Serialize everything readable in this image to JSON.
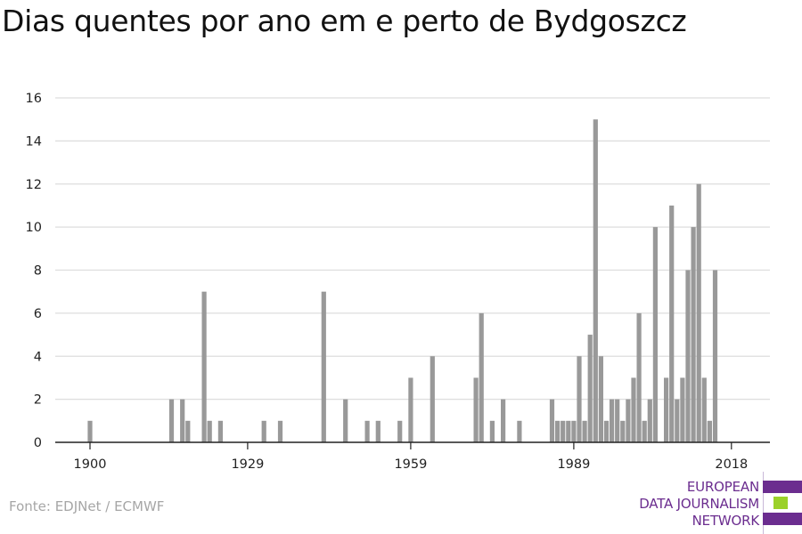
{
  "title": "Dias quentes por ano em e perto de Bydgoszcz",
  "source": "Fonte: EDJNet / ECMWF",
  "logo": {
    "lines": [
      "EUROPEAN",
      "DATA JOURNALISM",
      "NETWORK"
    ],
    "colors": {
      "purple": "#6b2d8f",
      "green": "#9bd12a"
    }
  },
  "colors": {
    "bar": "#999999",
    "grid": "#dddddd",
    "axis": "#222222"
  },
  "chart_data": {
    "type": "bar",
    "title": "Dias quentes por ano em e perto de Bydgoszcz",
    "xlabel": "",
    "ylabel": "",
    "xlim": [
      1900,
      2021
    ],
    "ylim": [
      0,
      16
    ],
    "yticks": [
      0,
      2,
      4,
      6,
      8,
      10,
      12,
      14,
      16
    ],
    "xticks": [
      1900,
      1929,
      1959,
      1989,
      2018
    ],
    "grid": true,
    "legend": "none",
    "categories": [
      1900,
      1915,
      1917,
      1918,
      1921,
      1922,
      1924,
      1932,
      1935,
      1943,
      1947,
      1951,
      1953,
      1957,
      1959,
      1963,
      1971,
      1972,
      1974,
      1976,
      1979,
      1985,
      1986,
      1987,
      1988,
      1989,
      1990,
      1991,
      1992,
      1993,
      1994,
      1995,
      1996,
      1997,
      1998,
      1999,
      2000,
      2001,
      2002,
      2003,
      2004,
      2006,
      2007,
      2008,
      2009,
      2010,
      2011,
      2012,
      2013,
      2014,
      2015,
      2016
    ],
    "values": [
      1,
      2,
      2,
      1,
      7,
      1,
      1,
      1,
      1,
      7,
      2,
      1,
      1,
      1,
      3,
      4,
      3,
      6,
      1,
      2,
      1,
      2,
      1,
      1,
      1,
      1,
      4,
      1,
      5,
      15,
      4,
      1,
      2,
      2,
      1,
      2,
      3,
      6,
      1,
      2,
      10,
      3,
      11,
      2,
      3,
      8,
      10,
      12,
      3,
      1,
      8,
      0
    ]
  }
}
